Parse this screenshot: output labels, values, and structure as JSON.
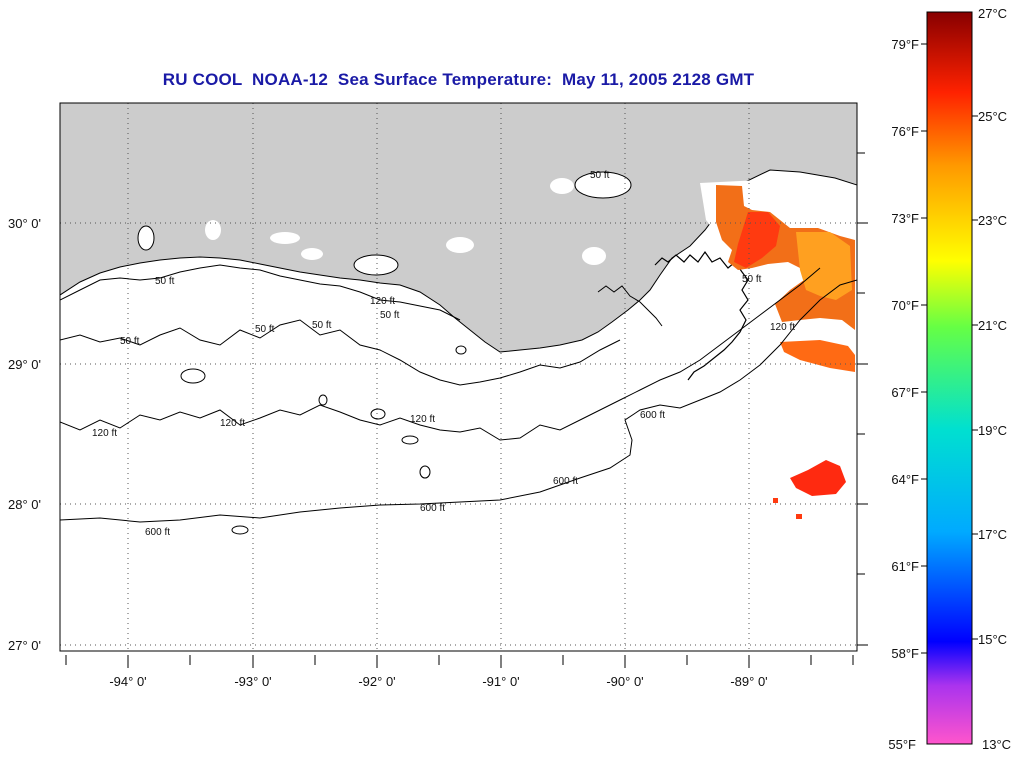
{
  "title": "RU COOL  NOAA-12  Sea Surface Temperature:  May 11, 2005 2128 GMT",
  "map": {
    "lat_labels": [
      "30° 0'",
      "29° 0'",
      "28° 0'",
      "27° 0'"
    ],
    "lon_labels": [
      "-94° 0'",
      "-93° 0'",
      "-92° 0'",
      "-91° 0'",
      "-90° 0'",
      "-89° 0'"
    ],
    "contour_labels": [
      "50 ft",
      "120 ft",
      "600 ft"
    ],
    "land_color": "#cccccc",
    "water_color": "#ffffff"
  },
  "colorbar": {
    "fahrenheit": [
      "79°F",
      "76°F",
      "73°F",
      "70°F",
      "67°F",
      "64°F",
      "61°F",
      "58°F",
      "55°F"
    ],
    "celsius": [
      "27°C",
      "25°C",
      "23°C",
      "21°C",
      "19°C",
      "17°C",
      "15°C",
      "13°C"
    ],
    "colors": [
      "#8b0000",
      "#ff0000",
      "#ff8c00",
      "#ffff00",
      "#7fff00",
      "#00ffcc",
      "#00bfff",
      "#0000ff",
      "#8000ff",
      "#ff00ff"
    ]
  }
}
